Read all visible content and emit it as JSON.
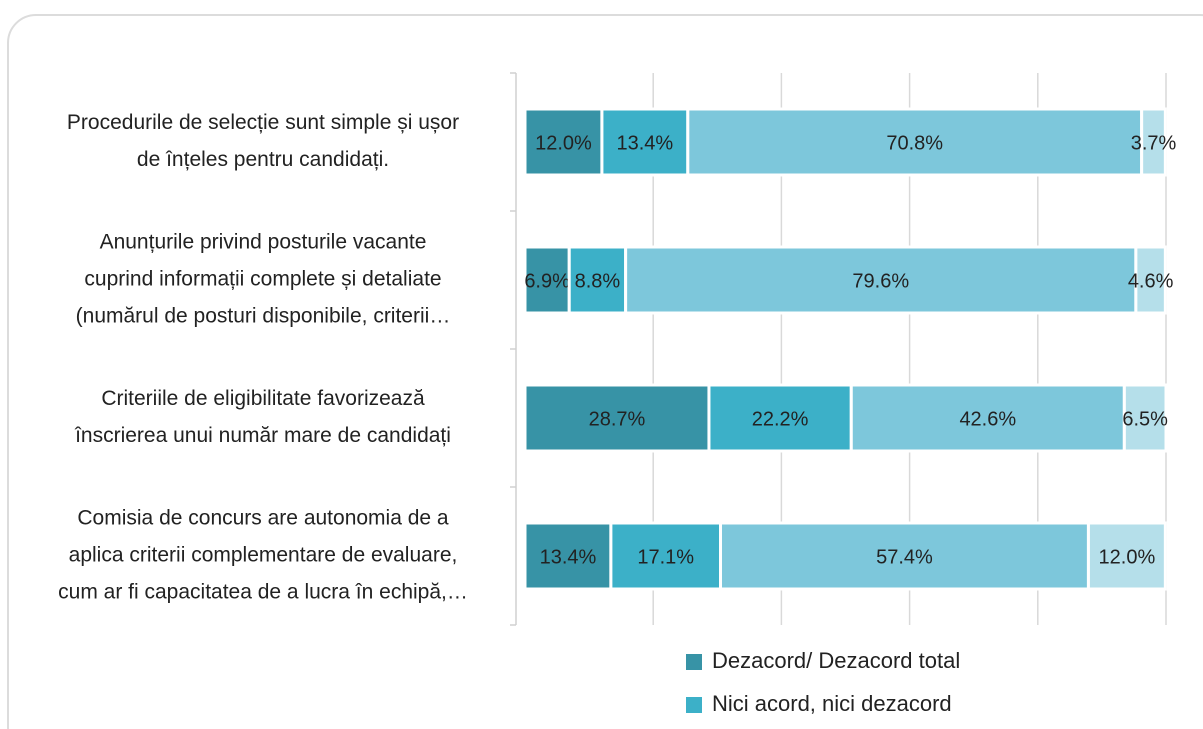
{
  "chart_data": {
    "type": "stacked_bar_horizontal",
    "categories": [
      [
        "Procedurile de selecție sunt simple și ușor",
        "de înțeles pentru candidați."
      ],
      [
        "Anunțurile privind posturile vacante",
        "cuprind informații complete și detaliate",
        "(numărul de posturi disponibile, criterii…"
      ],
      [
        "Criteriile de eligibilitate favorizează",
        "înscrierea unui număr mare de candidați"
      ],
      [
        "Comisia de concurs are autonomia de a",
        "aplica criterii complementare de evaluare,",
        "cum ar fi capacitatea de a lucra în echipă,…"
      ]
    ],
    "series": [
      {
        "name": "Dezacord/ Dezacord total",
        "color": "#3793a6",
        "values": [
          12.0,
          6.9,
          28.7,
          13.4
        ],
        "value_labels": [
          "12.0%",
          "6.9%",
          "28.7%",
          "13.4%"
        ]
      },
      {
        "name": "Nici acord, nici dezacord",
        "color": "#3cb0c8",
        "values": [
          13.4,
          8.8,
          22.2,
          17.1
        ],
        "value_labels": [
          "13.4%",
          "8.8%",
          "22.2%",
          "17.1%"
        ]
      },
      {
        "color": "#7dc7db",
        "values": [
          70.8,
          79.6,
          42.6,
          57.4
        ],
        "value_labels": [
          "70.8%",
          "79.6%",
          "42.6%",
          "57.4%"
        ]
      },
      {
        "color": "#b5dfea",
        "values": [
          3.7,
          4.6,
          6.5,
          12.0
        ],
        "value_labels": [
          "3.7%",
          "4.6%",
          "6.5%",
          "12.0%"
        ]
      }
    ],
    "xlim": [
      0,
      100
    ],
    "xticks": [
      0,
      20,
      40,
      60,
      80,
      100
    ],
    "grid": true
  }
}
